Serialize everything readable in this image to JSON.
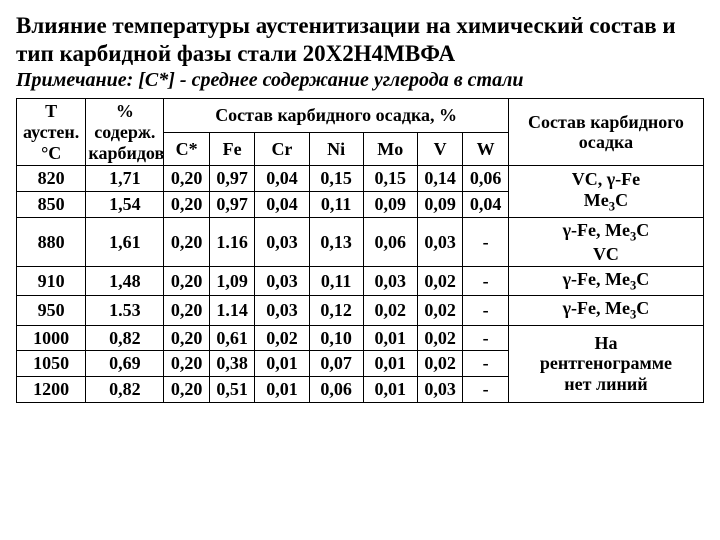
{
  "title": "Влияние температуры аустенитизации на химический состав и тип карбидной фазы стали 20Х2Н4МВФА",
  "note": "Примечание: [С*] - среднее содержание углерода в стали",
  "headers": {
    "t": "Т аустен. °С",
    "pc": "% содерж. карбидов",
    "comp_group": "Состав карбидного осадка, %",
    "phase": "Состав карбидного осадка",
    "c": "C*",
    "fe": "Fe",
    "cr": "Cr",
    "ni": "Ni",
    "mo": "Mo",
    "v": "V",
    "w": "W"
  },
  "rows": [
    {
      "t": "820",
      "pc": "1,71",
      "c": "0,20",
      "fe": "0,97",
      "cr": "0,04",
      "ni": "0,15",
      "mo": "0,15",
      "v": "0,14",
      "w": "0,06"
    },
    {
      "t": "850",
      "pc": "1,54",
      "c": "0,20",
      "fe": "0,97",
      "cr": "0,04",
      "ni": "0,11",
      "mo": "0,09",
      "v": "0,09",
      "w": "0,04"
    },
    {
      "t": "880",
      "pc": "1,61",
      "c": "0,20",
      "fe": "1.16",
      "cr": "0,03",
      "ni": "0,13",
      "mo": "0,06",
      "v": "0,03",
      "w": "-"
    },
    {
      "t": "910",
      "pc": "1,48",
      "c": "0,20",
      "fe": "1,09",
      "cr": "0,03",
      "ni": "0,11",
      "mo": "0,03",
      "v": "0,02",
      "w": "-"
    },
    {
      "t": "950",
      "pc": "1.53",
      "c": "0,20",
      "fe": "1.14",
      "cr": "0,03",
      "ni": "0,12",
      "mo": "0,02",
      "v": "0,02",
      "w": "-"
    },
    {
      "t": "1000",
      "pc": "0,82",
      "c": "0,20",
      "fe": "0,61",
      "cr": "0,02",
      "ni": "0,10",
      "mo": "0,01",
      "v": "0,02",
      "w": "-"
    },
    {
      "t": "1050",
      "pc": "0,69",
      "c": "0,20",
      "fe": "0,38",
      "cr": "0,01",
      "ni": "0,07",
      "mo": "0,01",
      "v": "0,02",
      "w": "-"
    },
    {
      "t": "1200",
      "pc": "0,82",
      "c": "0,20",
      "fe": "0,51",
      "cr": "0,01",
      "ni": "0,06",
      "mo": "0,01",
      "v": "0,03",
      "w": "-"
    }
  ],
  "phases": {
    "g1_l1": "VC, γ-Fe",
    "g1_l2_pre": "Me",
    "g1_l2_post": "C",
    "g2_l1_pre": "γ-Fe, Me",
    "g2_l1_post": "C",
    "g2_l2": "VC",
    "g3_pre": "γ-Fe, Me",
    "g3_post": "C",
    "g4_pre": "γ-Fe, Me",
    "g4_post": "C",
    "g5_l1": "На",
    "g5_l2": "рентгенограмме",
    "g5_l3": "нет линий",
    "sub3": "3"
  }
}
